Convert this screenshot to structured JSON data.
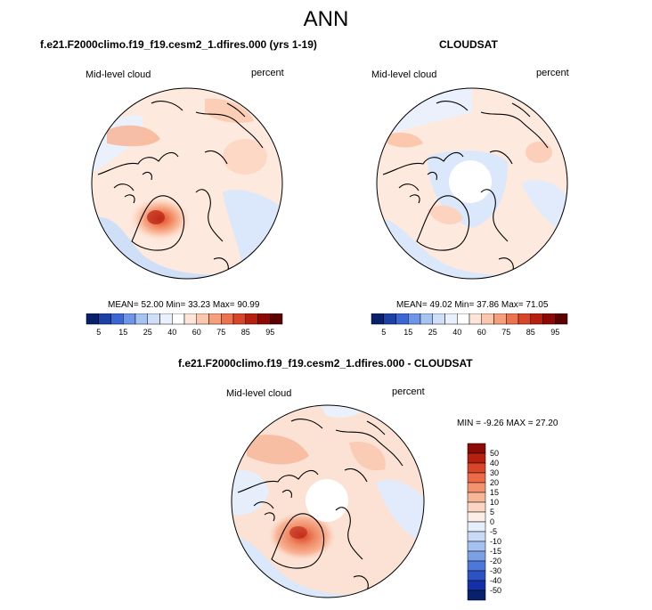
{
  "page": {
    "title": "ANN"
  },
  "panels": {
    "model": {
      "title": "f.e21.F2000climo.f19_f19.cesm2_1.dfires.000 (yrs 1-19)",
      "left_label": "Mid-level cloud",
      "right_label": "percent",
      "stats": {
        "mean_label": "MEAN=",
        "mean": "52.00",
        "min_label": "Min=",
        "min": "33.23",
        "max_label": "Max=",
        "max": "90.99"
      }
    },
    "obs": {
      "title": "CLOUDSAT",
      "left_label": "Mid-level cloud",
      "right_label": "percent",
      "stats": {
        "mean_label": "MEAN=",
        "mean": "49.02",
        "min_label": "Min=",
        "min": "37.86",
        "max_label": "Max=",
        "max": "71.05"
      }
    },
    "diff": {
      "title": "f.e21.F2000climo.f19_f19.cesm2_1.dfires.000 - CLOUDSAT",
      "left_label": "Mid-level cloud",
      "right_label": "percent",
      "stats": {
        "min_label": "MIN =",
        "min": "-9.26",
        "max_label": "MAX =",
        "max": "27.20"
      }
    }
  },
  "chart_data": [
    {
      "type": "heatmap",
      "title": "f.e21.F2000climo.f19_f19.cesm2_1.dfires.000 (yrs 1-19)",
      "variable": "Mid-level cloud",
      "units": "percent",
      "projection": "polar stereographic, north pole",
      "mean": 52.0,
      "min": 33.23,
      "max": 90.99,
      "colorbar": {
        "orientation": "horizontal",
        "labels": [
          "5",
          "15",
          "25",
          "40",
          "60",
          "75",
          "85",
          "95"
        ],
        "levels": [
          5,
          10,
          15,
          20,
          25,
          30,
          40,
          50,
          60,
          70,
          75,
          80,
          85,
          90,
          95
        ],
        "colors": [
          "#08216b",
          "#1e3fa6",
          "#3a66d6",
          "#6d95e8",
          "#a6c4f2",
          "#cfdff8",
          "#eaf1fc",
          "#ffffff",
          "#fde5d8",
          "#fbc7ad",
          "#f69f7d",
          "#ec7250",
          "#d94528",
          "#b71f10",
          "#8c0a05",
          "#5c0000"
        ]
      }
    },
    {
      "type": "heatmap",
      "title": "CLOUDSAT",
      "variable": "Mid-level cloud",
      "units": "percent",
      "projection": "polar stereographic, north pole",
      "mean": 49.02,
      "min": 37.86,
      "max": 71.05,
      "colorbar": {
        "orientation": "horizontal",
        "labels": [
          "5",
          "15",
          "25",
          "40",
          "60",
          "75",
          "85",
          "95"
        ],
        "levels": [
          5,
          10,
          15,
          20,
          25,
          30,
          40,
          50,
          60,
          70,
          75,
          80,
          85,
          90,
          95
        ],
        "colors": [
          "#08216b",
          "#1e3fa6",
          "#3a66d6",
          "#6d95e8",
          "#a6c4f2",
          "#cfdff8",
          "#eaf1fc",
          "#ffffff",
          "#fde5d8",
          "#fbc7ad",
          "#f69f7d",
          "#ec7250",
          "#d94528",
          "#b71f10",
          "#8c0a05",
          "#5c0000"
        ]
      }
    },
    {
      "type": "heatmap",
      "title": "f.e21.F2000climo.f19_f19.cesm2_1.dfires.000 - CLOUDSAT",
      "variable": "Mid-level cloud",
      "units": "percent",
      "projection": "polar stereographic, north pole",
      "min": -9.26,
      "max": 27.2,
      "colorbar": {
        "orientation": "vertical",
        "labels": [
          "50",
          "40",
          "30",
          "20",
          "15",
          "10",
          "5",
          "0",
          "-5",
          "-10",
          "-15",
          "-20",
          "-30",
          "-40",
          "-50"
        ],
        "levels": [
          50,
          40,
          30,
          20,
          15,
          10,
          5,
          0,
          -5,
          -10,
          -15,
          -20,
          -30,
          -40,
          -50
        ],
        "colors": [
          "#8c0a05",
          "#b71f10",
          "#d94528",
          "#ec6a48",
          "#f4926f",
          "#f8b597",
          "#fbd5c2",
          "#fdeee5",
          "#e6eefc",
          "#c9daf7",
          "#a6c1f0",
          "#7aa0e6",
          "#4e78d8",
          "#2d52c4",
          "#1430a8",
          "#08216b"
        ]
      }
    }
  ]
}
